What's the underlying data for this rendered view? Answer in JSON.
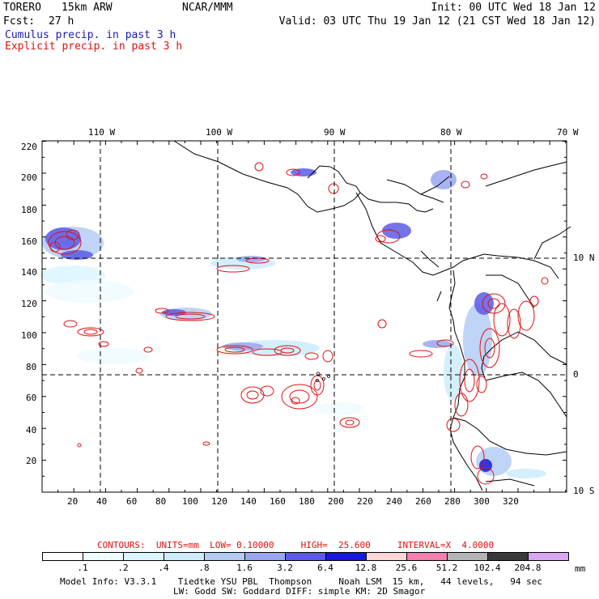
{
  "header": {
    "run_name": "TORERO",
    "resolution": "15km ARW",
    "institution": "NCAR/MMM",
    "init": "Init: 00 UTC Wed 18 Jan 12",
    "fcst_label": "Fcst:",
    "fcst_value": "27 h",
    "valid": "Valid: 03 UTC Thu 19 Jan 12 (21 CST Wed 18 Jan 12)"
  },
  "legend_lines": {
    "cumulus": "Cumulus precip. in past 3 h",
    "explicit": "Explicit precip. in past 3 h",
    "cumulus_color": "#1b1bb0",
    "explicit_color": "#e01010"
  },
  "map": {
    "lon_labels": [
      "110 W",
      "100 W",
      "90 W",
      "80 W",
      "70 W"
    ],
    "lat_labels": [
      "10 N",
      "0",
      "10 S"
    ],
    "x_ticks": [
      "20",
      "40",
      "60",
      "80",
      "100",
      "120",
      "140",
      "160",
      "180",
      "200",
      "220",
      "240",
      "260",
      "280",
      "300",
      "320"
    ],
    "y_ticks": [
      "220",
      "200",
      "180",
      "160",
      "140",
      "120",
      "100",
      "80",
      "60",
      "40",
      "20"
    ]
  },
  "contour_info": {
    "text": "CONTOURS:  UNITS=mm  LOW= 0.10000     HIGH=  25.600     INTERVAL=X  4.0000"
  },
  "colorbar": {
    "levels": [
      ".1",
      ".2",
      ".4",
      ".8",
      "1.6",
      "3.2",
      "6.4",
      "12.8",
      "25.6",
      "51.2",
      "102.4",
      "204.8"
    ],
    "colors": [
      "#ffffff",
      "#eefcff",
      "#dcf6ff",
      "#ccecfb",
      "#b4ccf4",
      "#9aa6ee",
      "#5a5ae6",
      "#1818dc",
      "#ffd6d6",
      "#f47fb0",
      "#b4b4b4",
      "#3a3a3a",
      "#d8a6f2"
    ],
    "unit": "mm"
  },
  "footer": {
    "line1": "Model Info: V3.3.1    Tiedtke YSU PBL  Thompson     Noah LSM  15 km,   44 levels,   94 sec",
    "line2": "LW: Godd SW: Goddard DIFF: simple KM: 2D Smagor"
  }
}
